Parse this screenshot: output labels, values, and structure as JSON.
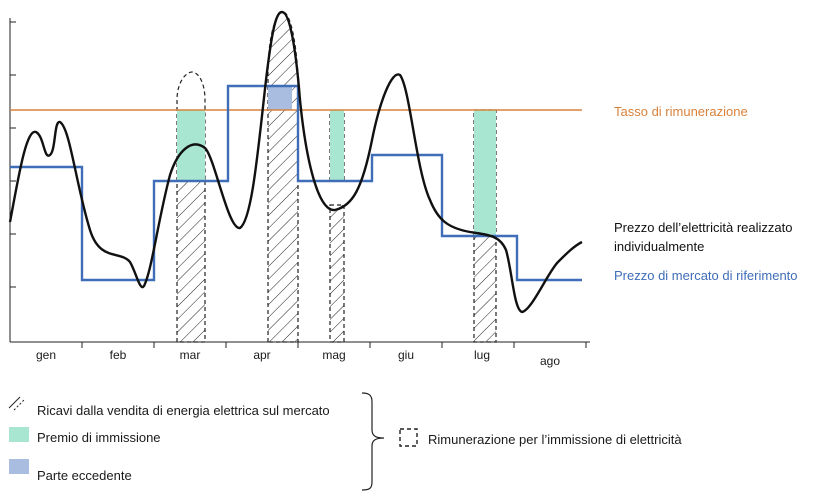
{
  "chart_data": {
    "type": "line",
    "x_categories": [
      "gen",
      "feb",
      "mar",
      "apr",
      "mag",
      "giu",
      "lug",
      "ago"
    ],
    "series": [
      {
        "name": "Prezzo dell’elettricità realizzato individualmente",
        "color": "#111111"
      },
      {
        "name": "Prezzo di mercato di riferimento",
        "color": "#3f6db8",
        "steps": [
          4.0,
          1.5,
          3.0,
          4.8,
          3.0,
          3.5,
          2.0,
          1.5
        ]
      },
      {
        "name": "Tasso di rimunerazione",
        "color": "#d9823b",
        "constant": 4.4
      }
    ]
  },
  "labels": {
    "rate": "Tasso di rimunerazione",
    "individual": "Prezzo dell’elettricità realizzato individualmente",
    "market": "Prezzo di mercato di riferimento"
  },
  "legend": {
    "hatch": "Ricavi dalla vendita di energia elettrica sul mercato",
    "premium": "Premio di immissione",
    "excess": "Parte eccedente",
    "remuneration": "Rimunerazione per l’immissione di elettricità"
  },
  "colors": {
    "premium": "#a8e6d2",
    "excess": "#a9bde0",
    "market": "#3f6db8",
    "rate": "#d9823b"
  }
}
